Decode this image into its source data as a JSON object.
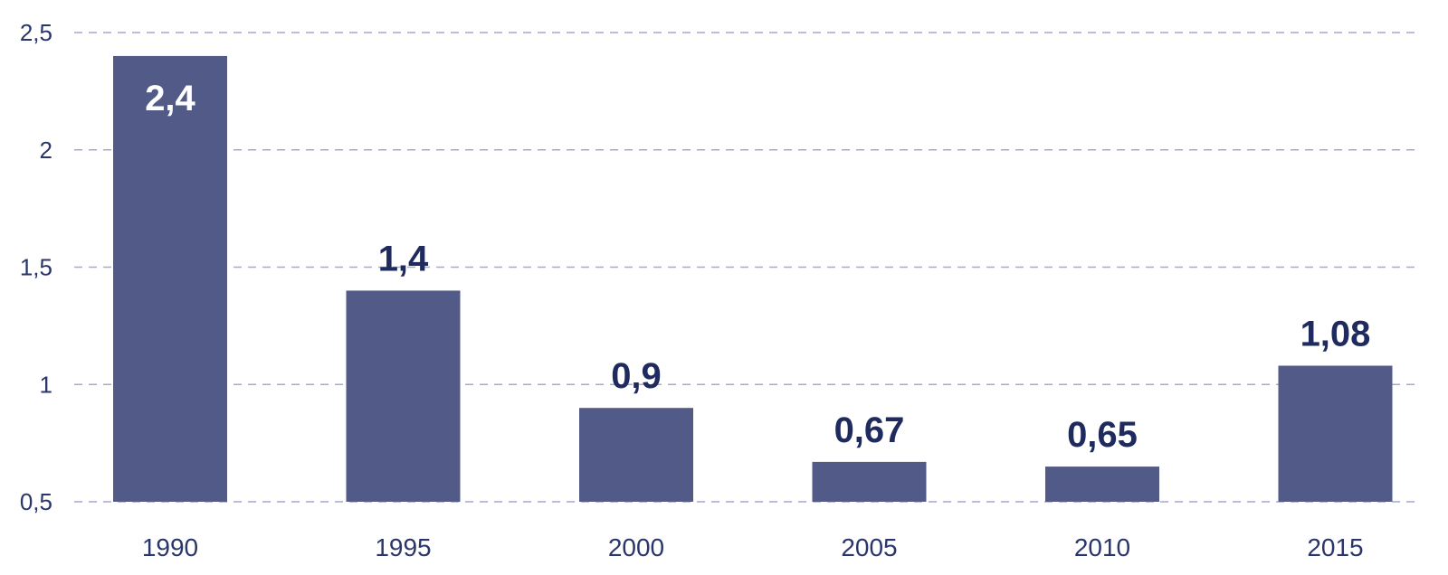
{
  "chart_data": {
    "type": "bar",
    "title": "",
    "xlabel": "",
    "ylabel": "",
    "categories": [
      "1990",
      "1995",
      "2000",
      "2005",
      "2010",
      "2015"
    ],
    "values": [
      2.4,
      1.4,
      0.9,
      0.67,
      0.65,
      1.08
    ],
    "value_labels": [
      "2,4",
      "1,4",
      "0,9",
      "0,67",
      "0,65",
      "1,08"
    ],
    "ylim": [
      0.5,
      2.5
    ],
    "yticks": [
      0.5,
      1,
      1.5,
      2,
      2.5
    ],
    "ytick_labels": [
      "0,5",
      "1",
      "1,5",
      "2",
      "2,5"
    ],
    "grid": true,
    "legend": "none",
    "colors": {
      "bar": "#525b87",
      "label_dark": "#1f2a5e",
      "label_inside": "#ffffff",
      "axis_text": "#2a356b",
      "grid": "#a3aacb"
    }
  }
}
